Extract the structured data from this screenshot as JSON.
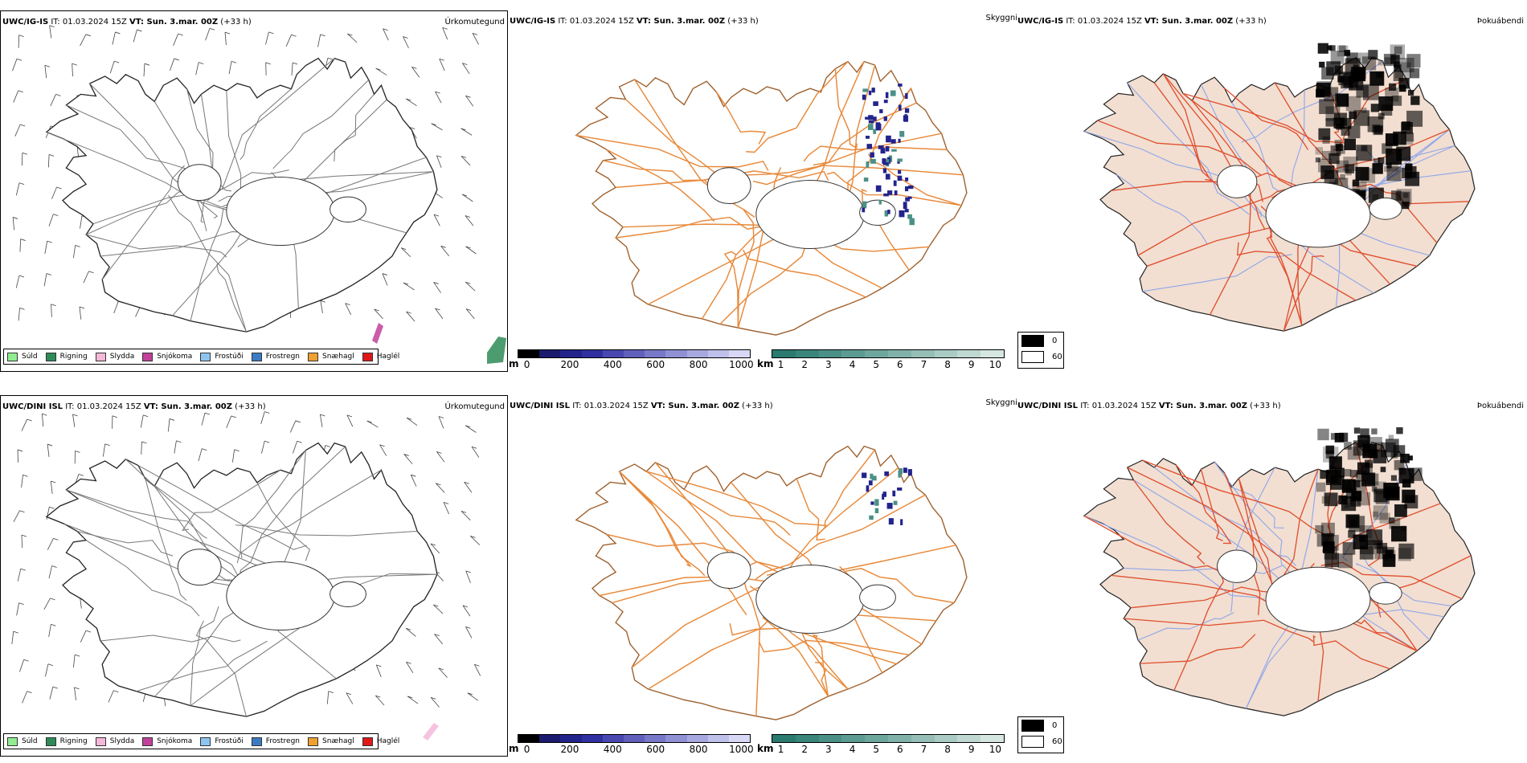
{
  "colors": {
    "coast": "#222222",
    "roads_orange": "#e8893a",
    "roads_red": "#e0502e",
    "land_fog": "#f2dfd2",
    "rivers": "#8fa6e8"
  },
  "rows": [
    {
      "model": "UWC/IG-IS",
      "precip": {
        "title_it": " IT: 01.03.2024 15Z ",
        "title_vt": "VT: Sun. 3.mar. 00Z",
        "title_lead": " (+33 h)",
        "label": "Úrkomutegund"
      },
      "vis": {
        "title_it": " IT: 01.03.2024 15Z ",
        "title_vt": "VT: Sun. 3.mar. 00Z",
        "title_lead": " (+33 h)",
        "label": "Skyggni"
      },
      "fog": {
        "title_it": " IT: 01.03.2024 15Z ",
        "title_vt": "VT: Sun. 3.mar. 00Z",
        "title_lead": " (+33 h)",
        "label": "Þokuábendi"
      },
      "fog_amount": 1.0
    },
    {
      "model": "UWC/DINI ISL",
      "precip": {
        "title_it": " IT: 01.03.2024 15Z ",
        "title_vt": "VT: Sun. 3.mar. 00Z",
        "title_lead": " (+33 h)",
        "label": "Úrkomutegund"
      },
      "vis": {
        "title_it": " IT: 01.03.2024 15Z ",
        "title_vt": "VT: Sun. 3.mar. 00Z",
        "title_lead": " (+33 h)",
        "label": "Skyggni"
      },
      "fog": {
        "title_it": " IT: 01.03.2024 15Z ",
        "title_vt": "VT: Sun. 3.mar. 00Z",
        "title_lead": " (+33 h)",
        "label": "Þokuábendi"
      },
      "fog_amount": 0.8
    }
  ],
  "precip_legend": [
    {
      "label": "Súld",
      "color": "#90ee90"
    },
    {
      "label": "Rigning",
      "color": "#2e8b57"
    },
    {
      "label": "Slydda",
      "color": "#f4b8d8"
    },
    {
      "label": "Snjókoma",
      "color": "#c2409a"
    },
    {
      "label": "Frostúði",
      "color": "#8ec5f0"
    },
    {
      "label": "Frostregn",
      "color": "#3a7cc4"
    },
    {
      "label": "Snæhagl",
      "color": "#f0a030"
    },
    {
      "label": "Haglél",
      "color": "#e01818"
    }
  ],
  "vis_colorbar_m": {
    "unit": "m",
    "ticks": [
      "0",
      "200",
      "400",
      "600",
      "800",
      "1000"
    ],
    "colors": [
      "#000000",
      "#1a1a6e",
      "#23238c",
      "#3030a0",
      "#4848b0",
      "#6060bc",
      "#7878c8",
      "#9090d4",
      "#a8a8e0",
      "#c0c0ec",
      "#d8d8f6"
    ]
  },
  "vis_colorbar_km": {
    "unit": "km",
    "ticks": [
      "1",
      "2",
      "3",
      "4",
      "5",
      "6",
      "7",
      "8",
      "9",
      "10"
    ],
    "colors": [
      "#2a7a70",
      "#3a857b",
      "#4b9086",
      "#5c9b91",
      "#6da69c",
      "#80b2a9",
      "#95beb6",
      "#aacbc4",
      "#c0d8d2",
      "#d6e6e1"
    ]
  },
  "fog_legend": [
    {
      "label": "0",
      "color": "#000000"
    },
    {
      "label": "60",
      "color": "#ffffff"
    }
  ]
}
